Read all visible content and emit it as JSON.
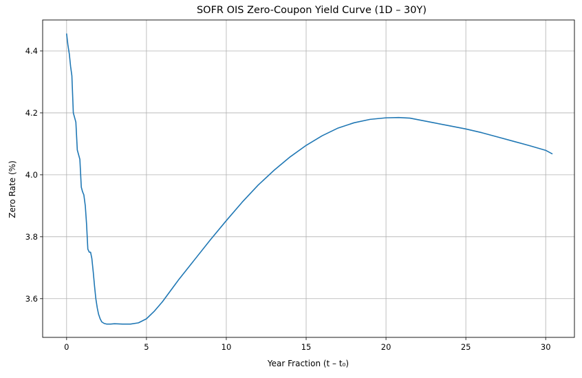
{
  "chart_data": {
    "type": "line",
    "title": "SOFR OIS Zero-Coupon Yield Curve (1D – 30Y)",
    "xlabel": "Year Fraction (t – t₀)",
    "ylabel": "Zero Rate (%)",
    "xlim": [
      -1.5,
      31.8
    ],
    "ylim": [
      3.475,
      4.5
    ],
    "xticks": [
      0,
      5,
      10,
      15,
      20,
      25,
      30
    ],
    "xtick_labels": [
      "0",
      "5",
      "10",
      "15",
      "20",
      "25",
      "30"
    ],
    "yticks": [
      3.6,
      3.8,
      4.0,
      4.2,
      4.4
    ],
    "ytick_labels": [
      "3.6",
      "3.8",
      "4.0",
      "4.2",
      "4.4"
    ],
    "grid": true,
    "line_color": "#1f77b4",
    "series": [
      {
        "x": [
          0.0,
          0.08,
          0.17,
          0.25,
          0.33,
          0.42,
          0.5,
          0.58,
          0.67,
          0.75,
          0.83,
          0.92,
          1.0,
          1.08,
          1.17,
          1.25,
          1.33,
          1.42,
          1.5,
          1.58,
          1.67,
          1.75,
          1.83,
          1.92,
          2.0,
          2.1,
          2.2,
          2.35,
          2.5,
          2.75,
          3.0,
          3.5,
          4.0,
          4.5,
          5.0,
          5.5,
          6.0,
          7.0,
          8.0,
          9.0,
          10.0,
          11.0,
          12.0,
          13.0,
          14.0,
          15.0,
          16.0,
          17.0,
          18.0,
          19.0,
          20.0,
          20.8,
          21.5,
          22.0,
          23.0,
          24.0,
          25.0,
          26.0,
          27.0,
          28.0,
          29.0,
          30.0,
          30.4
        ],
        "y": [
          4.455,
          4.42,
          4.39,
          4.35,
          4.32,
          4.2,
          4.185,
          4.17,
          4.08,
          4.065,
          4.05,
          3.96,
          3.945,
          3.935,
          3.9,
          3.84,
          3.76,
          3.75,
          3.75,
          3.73,
          3.685,
          3.64,
          3.6,
          3.57,
          3.55,
          3.535,
          3.525,
          3.52,
          3.518,
          3.518,
          3.519,
          3.518,
          3.518,
          3.522,
          3.535,
          3.56,
          3.59,
          3.66,
          3.725,
          3.79,
          3.852,
          3.912,
          3.967,
          4.015,
          4.058,
          4.095,
          4.126,
          4.151,
          4.168,
          4.179,
          4.184,
          4.185,
          4.183,
          4.178,
          4.168,
          4.158,
          4.148,
          4.136,
          4.122,
          4.108,
          4.094,
          4.079,
          4.068
        ]
      }
    ]
  }
}
